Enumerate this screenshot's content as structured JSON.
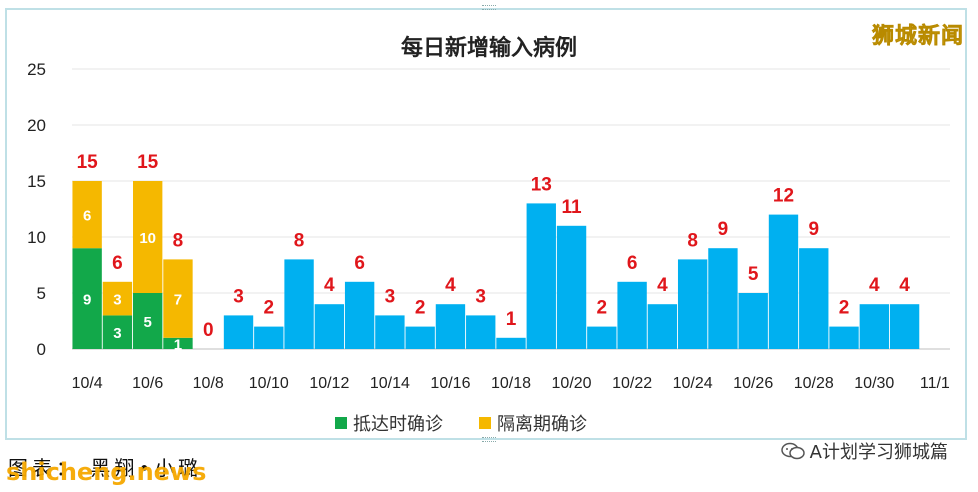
{
  "chart_data": {
    "type": "bar",
    "stacked": true,
    "title": "每日新增输入病例",
    "ylim": [
      0,
      25
    ],
    "yticks": [
      "0",
      "5",
      "10",
      "15",
      "20",
      "25"
    ],
    "xtick_labels": [
      "10/4",
      "10/6",
      "10/8",
      "10/10",
      "10/12",
      "10/14",
      "10/16",
      "10/18",
      "10/20",
      "10/22",
      "10/24",
      "10/26",
      "10/28",
      "10/30",
      "11/1"
    ],
    "categories": [
      "10/4",
      "10/5",
      "10/6",
      "10/7",
      "10/8",
      "10/9",
      "10/10",
      "10/11",
      "10/12",
      "10/13",
      "10/14",
      "10/15",
      "10/16",
      "10/17",
      "10/18",
      "10/19",
      "10/20",
      "10/21",
      "10/22",
      "10/23",
      "10/24",
      "10/25",
      "10/26",
      "10/27",
      "10/28",
      "10/29",
      "10/30",
      "10/31"
    ],
    "series": [
      {
        "name": "抵达时确诊",
        "color": "#12a84a",
        "values": [
          9,
          3,
          5,
          1,
          0,
          0,
          0,
          0,
          0,
          0,
          0,
          0,
          0,
          0,
          0,
          0,
          0,
          0,
          0,
          0,
          0,
          0,
          0,
          0,
          0,
          0,
          0,
          0
        ]
      },
      {
        "name": "隔离期确诊",
        "color": "#f5b800",
        "values": [
          6,
          3,
          10,
          7,
          0,
          0,
          0,
          0,
          0,
          0,
          0,
          0,
          0,
          0,
          0,
          0,
          0,
          0,
          0,
          0,
          0,
          0,
          0,
          0,
          0,
          0,
          0,
          0
        ]
      },
      {
        "name": "",
        "color": "#00b0f0",
        "values": [
          0,
          0,
          0,
          0,
          0,
          3,
          2,
          8,
          4,
          6,
          3,
          2,
          4,
          3,
          1,
          13,
          11,
          2,
          6,
          4,
          8,
          9,
          5,
          12,
          9,
          2,
          4,
          4
        ]
      }
    ],
    "totals": [
      15,
      6,
      15,
      8,
      0,
      3,
      2,
      8,
      4,
      6,
      3,
      2,
      4,
      3,
      1,
      13,
      11,
      2,
      6,
      4,
      8,
      9,
      5,
      12,
      9,
      2,
      4,
      4
    ],
    "segment_labels": [
      [
        "9",
        "6"
      ],
      [
        "3",
        "3"
      ],
      [
        "5",
        "10"
      ],
      [
        "1",
        "7"
      ]
    ],
    "legend": [
      "抵达时确诊",
      "隔离期确诊"
    ],
    "legend_position": "bottom"
  },
  "watermark": "狮城新闻",
  "caption": "图表：  黑翔•小璐",
  "site": "shicheng.news",
  "account": "A计划学习狮城篇"
}
